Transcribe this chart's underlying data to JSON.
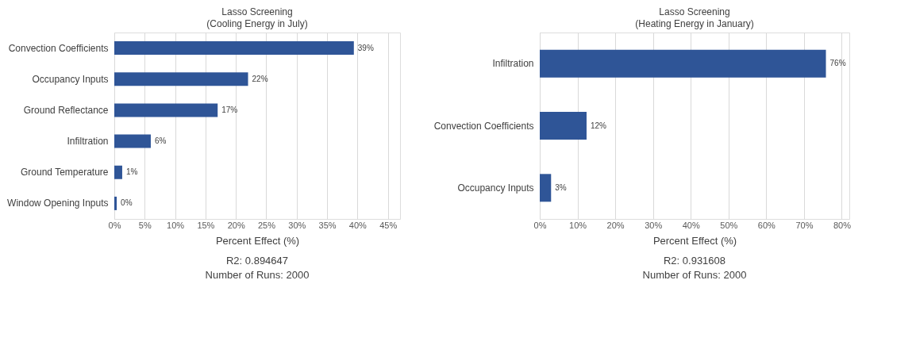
{
  "chart_data": [
    {
      "type": "bar",
      "orientation": "horizontal",
      "title": "Lasso Screening",
      "subtitle": "(Cooling Energy in July)",
      "xlabel": "Percent Effect (%)",
      "categories": [
        "Convection Coefficients",
        "Occupancy Inputs",
        "Ground Reflectance",
        "Infiltration",
        "Ground Temperature",
        "Window Opening Inputs"
      ],
      "values": [
        39.4,
        22,
        17,
        6,
        1.3,
        0.4
      ],
      "value_labels": [
        "39%",
        "22%",
        "17%",
        "6%",
        "1%",
        "0%"
      ],
      "color": "#2f5597",
      "xlim": [
        0,
        47
      ],
      "xticks": [
        {
          "value": 0,
          "label": "0%"
        },
        {
          "value": 5,
          "label": "5%"
        },
        {
          "value": 10,
          "label": "10%"
        },
        {
          "value": 15,
          "label": "15%"
        },
        {
          "value": 20,
          "label": "20%"
        },
        {
          "value": 25,
          "label": "25%"
        },
        {
          "value": 30,
          "label": "30%"
        },
        {
          "value": 35,
          "label": "35%"
        },
        {
          "value": 40,
          "label": "40%"
        },
        {
          "value": 45,
          "label": "45%"
        }
      ],
      "grid": "x",
      "annotations": [
        "R2: 0.894647",
        "Number of Runs: 2000"
      ]
    },
    {
      "type": "bar",
      "orientation": "horizontal",
      "title": "Lasso Screening",
      "subtitle": "(Heating Energy in January)",
      "xlabel": "Percent Effect (%)",
      "categories": [
        "Infiltration",
        "Convection Coefficients",
        "Occupancy Inputs"
      ],
      "values": [
        75.8,
        12.4,
        3
      ],
      "value_labels": [
        "76%",
        "12%",
        "3%"
      ],
      "color": "#2f5597",
      "xlim": [
        0,
        82
      ],
      "xticks": [
        {
          "value": 0,
          "label": "0%"
        },
        {
          "value": 10,
          "label": "10%"
        },
        {
          "value": 20,
          "label": "20%"
        },
        {
          "value": 30,
          "label": "30%"
        },
        {
          "value": 40,
          "label": "40%"
        },
        {
          "value": 50,
          "label": "50%"
        },
        {
          "value": 60,
          "label": "60%"
        },
        {
          "value": 70,
          "label": "70%"
        },
        {
          "value": 80,
          "label": "80%"
        }
      ],
      "grid": "x",
      "annotations": [
        "R2: 0.931608",
        "Number of Runs: 2000"
      ]
    }
  ]
}
